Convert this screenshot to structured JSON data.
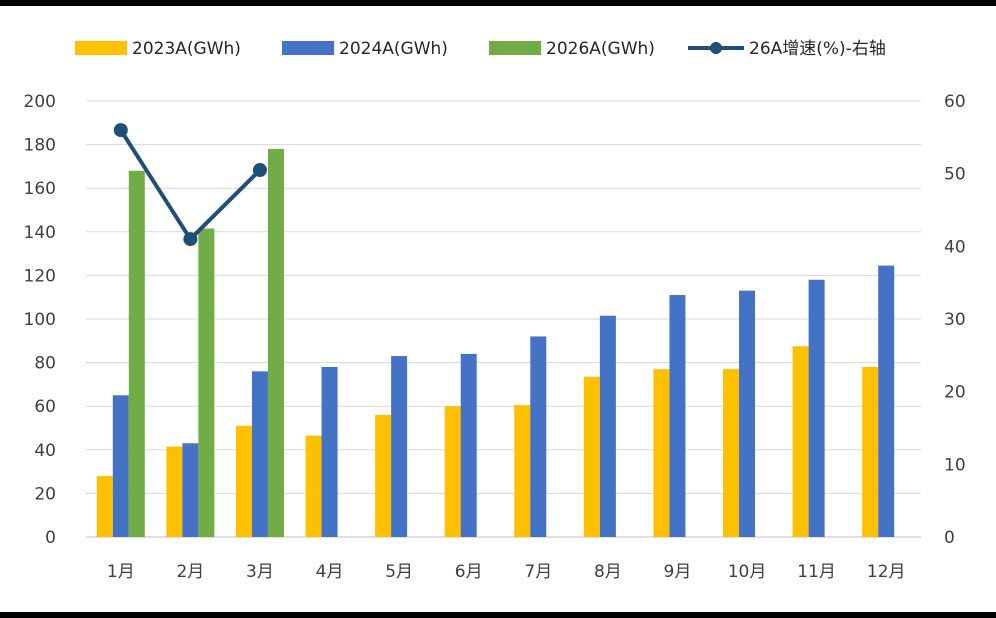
{
  "chart_data": {
    "type": "bar",
    "categories": [
      "1月",
      "2月",
      "3月",
      "4月",
      "5月",
      "6月",
      "7月",
      "8月",
      "9月",
      "10月",
      "11月",
      "12月"
    ],
    "series": [
      {
        "name": "2023A(GWh)",
        "kind": "bar",
        "axis": "left",
        "color": "#FFC000",
        "values": [
          28,
          41.5,
          51,
          46.5,
          56,
          60,
          60.5,
          73.5,
          77,
          77,
          87.5,
          78
        ]
      },
      {
        "name": "2024A(GWh)",
        "kind": "bar",
        "axis": "left",
        "color": "#4472C4",
        "values": [
          65,
          43,
          76,
          78,
          83,
          84,
          92,
          101.5,
          111,
          113,
          118,
          124.5
        ]
      },
      {
        "name": "2026A(GWh)",
        "kind": "bar",
        "axis": "left",
        "color": "#70AD47",
        "values": [
          168,
          141.5,
          178,
          null,
          null,
          null,
          null,
          null,
          null,
          null,
          null,
          null
        ]
      },
      {
        "name": "26A增速(%)-右轴",
        "kind": "line",
        "axis": "right",
        "color": "#1F4E79",
        "values": [
          56,
          41,
          50.5,
          null,
          null,
          null,
          null,
          null,
          null,
          null,
          null,
          null
        ]
      }
    ],
    "y_left": {
      "min": 0,
      "max": 200,
      "step": 20,
      "tick_labels": [
        "0",
        "20",
        "40",
        "60",
        "80",
        "100",
        "120",
        "140",
        "160",
        "180",
        "200"
      ]
    },
    "y_right": {
      "min": 0,
      "max": 60,
      "step": 10,
      "tick_labels": [
        "0",
        "10",
        "20",
        "30",
        "40",
        "50",
        "60"
      ]
    },
    "grid": true,
    "legend_position": "top"
  }
}
